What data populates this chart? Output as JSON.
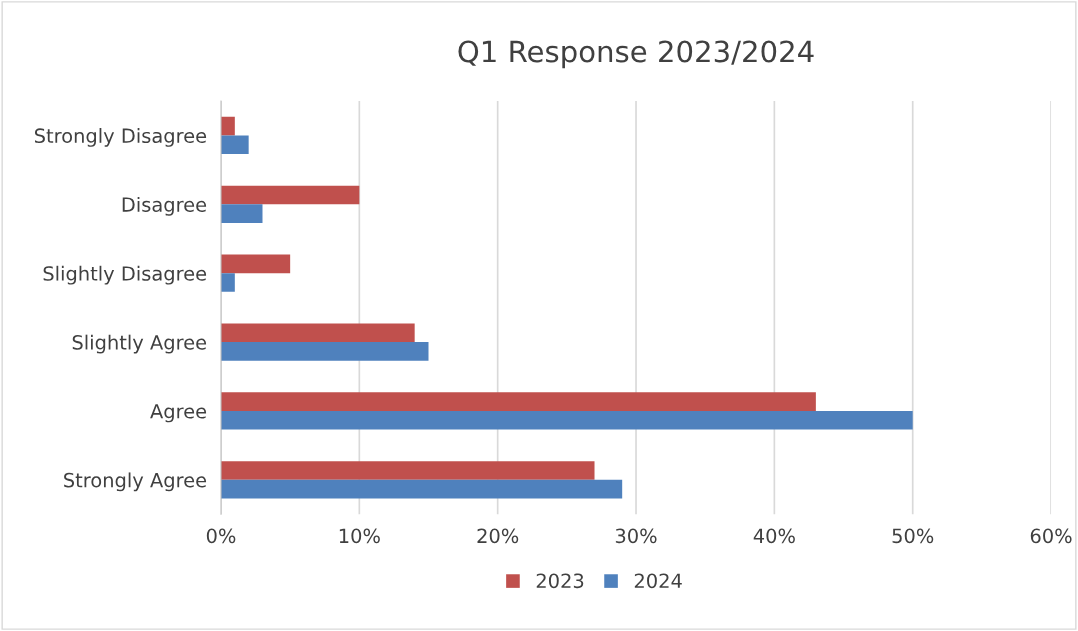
{
  "chart_data": {
    "type": "bar",
    "orientation": "horizontal",
    "title": "Q1 Response 2023/2024",
    "categories": [
      "Strongly Disagree",
      "Disagree",
      "Slightly Disagree",
      "Slightly Agree",
      "Agree",
      "Strongly Agree"
    ],
    "series": [
      {
        "name": "2023",
        "color": "#c0504d",
        "values": [
          1,
          10,
          5,
          14,
          43,
          27
        ]
      },
      {
        "name": "2024",
        "color": "#4f81bd",
        "values": [
          2,
          3,
          1,
          15,
          50,
          29
        ]
      }
    ],
    "xlim": [
      0,
      60
    ],
    "xticks": [
      {
        "value": 0,
        "label": "0%"
      },
      {
        "value": 10,
        "label": "10%"
      },
      {
        "value": 20,
        "label": "20%"
      },
      {
        "value": 30,
        "label": "30%"
      },
      {
        "value": 40,
        "label": "40%"
      },
      {
        "value": 50,
        "label": "50%"
      },
      {
        "value": 60,
        "label": "60%"
      }
    ],
    "grid": "x",
    "legend": "bottom"
  }
}
